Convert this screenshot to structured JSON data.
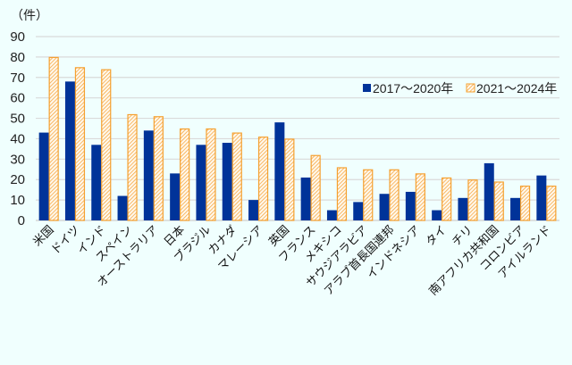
{
  "chart_data": {
    "type": "bar",
    "title": "",
    "unit_label": "（件）",
    "xlabel": "",
    "ylabel": "（件）",
    "ylim": [
      0,
      90
    ],
    "yticks": [
      0,
      10,
      20,
      30,
      40,
      50,
      60,
      70,
      80,
      90
    ],
    "grid": true,
    "legend_position": "upper right (inside)",
    "categories": [
      "米国",
      "ドイツ",
      "インド",
      "スペイン",
      "オーストラリア",
      "日本",
      "ブラジル",
      "カナダ",
      "マレーシア",
      "英国",
      "フランス",
      "メキシコ",
      "サウジアラビア",
      "アラブ首長国連邦",
      "インドネシア",
      "タイ",
      "チリ",
      "南アフリカ共和国",
      "コロンビア",
      "アイルランド"
    ],
    "series": [
      {
        "name": "2017～2020年",
        "color": "#003399",
        "style": "solid",
        "values": [
          43,
          68,
          37,
          12,
          44,
          23,
          37,
          38,
          10,
          48,
          21,
          5,
          9,
          13,
          14,
          5,
          11,
          28,
          11,
          22
        ]
      },
      {
        "name": "2021～2024年",
        "color": "#f5a030",
        "style": "hatched",
        "values": [
          80,
          75,
          74,
          52,
          51,
          45,
          45,
          43,
          41,
          40,
          32,
          26,
          25,
          25,
          23,
          21,
          20,
          19,
          17,
          17
        ]
      }
    ]
  }
}
